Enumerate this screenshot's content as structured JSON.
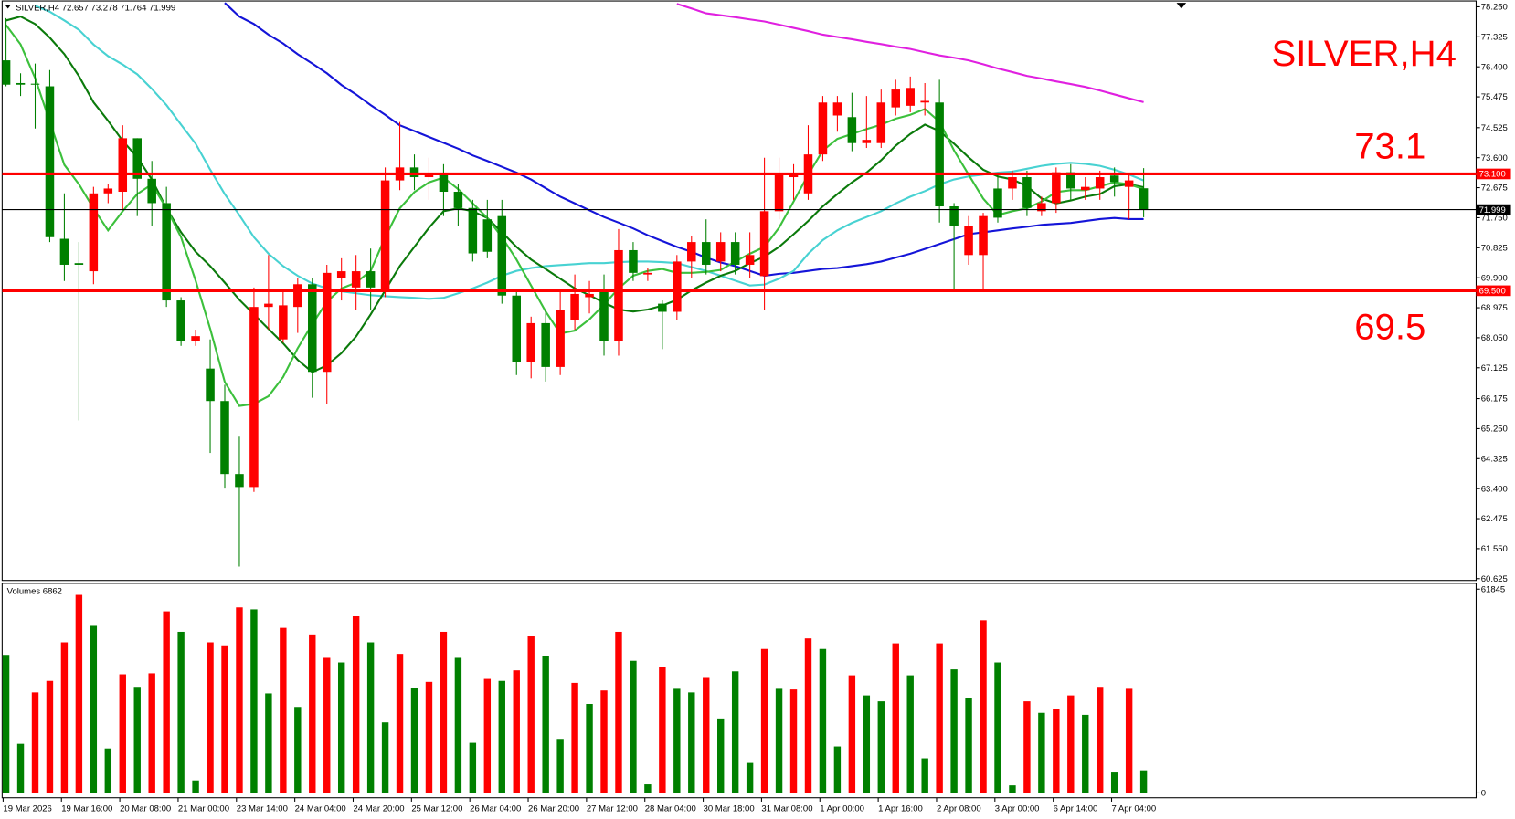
{
  "chart_data": {
    "type": "candlestick",
    "symbol": "SILVER,H4",
    "categories": [
      "19 Mar 2026",
      null,
      null,
      null,
      "19 Mar 16:00",
      null,
      null,
      null,
      "20 Mar 08:00",
      null,
      null,
      null,
      "21 Mar 00:00",
      null,
      null,
      null,
      "23 Mar 14:00",
      null,
      null,
      null,
      "24 Mar 04:00",
      null,
      null,
      null,
      "24 Mar 20:00",
      null,
      null,
      null,
      "25 Mar 12:00",
      null,
      null,
      null,
      "26 Mar 04:00",
      null,
      null,
      null,
      "26 Mar 20:00",
      null,
      null,
      null,
      "27 Mar 12:00",
      null,
      null,
      null,
      "28 Mar 04:00",
      null,
      null,
      null,
      "30 Mar 18:00",
      null,
      null,
      null,
      "31 Mar 08:00",
      null,
      null,
      null,
      "1 Apr 00:00",
      null,
      null,
      null,
      "1 Apr 16:00",
      null,
      null,
      null,
      "2 Apr 08:00",
      null,
      null,
      null,
      "3 Apr 00:00",
      null,
      null,
      null,
      "6 Apr 14:00",
      null,
      null,
      null,
      "7 Apr 04:00",
      null,
      null
    ],
    "open": [
      76.6,
      75.9,
      75.88,
      75.8,
      71.1,
      70.35,
      70.1,
      72.5,
      72.55,
      74.2,
      72.95,
      72.2,
      69.2,
      67.95,
      67.1,
      66.1,
      63.85,
      63.45,
      69.0,
      68.0,
      69.0,
      69.7,
      67.0,
      69.9,
      69.6,
      70.1,
      69.5,
      72.9,
      73.3,
      73.0,
      73.1,
      72.55,
      72.05,
      71.7,
      71.8,
      69.35,
      67.3,
      68.5,
      67.15,
      68.6,
      69.3,
      69.5,
      67.95,
      70.75,
      70.0,
      69.1,
      68.85,
      70.4,
      71.0,
      70.4,
      71.0,
      70.3,
      69.95,
      71.95,
      73.0,
      72.5,
      73.7,
      74.9,
      74.85,
      74.05,
      74.05,
      75.15,
      75.2,
      75.3,
      75.3,
      72.1,
      70.6,
      70.6,
      72.65,
      72.65,
      73.0,
      71.95,
      72.2,
      73.15,
      72.6,
      72.65,
      73.05,
      72.7,
      72.657
    ],
    "high": [
      77.9,
      76.2,
      76.5,
      76.3,
      72.5,
      71.0,
      72.7,
      72.8,
      74.6,
      74.2,
      73.5,
      72.7,
      69.3,
      68.3,
      68.0,
      66.6,
      65.0,
      69.6,
      70.6,
      69.5,
      69.9,
      69.9,
      70.3,
      70.5,
      70.6,
      70.8,
      73.3,
      74.7,
      73.7,
      73.6,
      73.4,
      72.8,
      72.3,
      72.3,
      72.3,
      69.5,
      68.7,
      68.9,
      69.5,
      70.0,
      69.8,
      70.0,
      71.4,
      71.0,
      70.2,
      69.2,
      70.6,
      71.2,
      71.7,
      71.3,
      71.3,
      71.3,
      73.6,
      73.6,
      73.4,
      74.6,
      75.5,
      75.5,
      75.6,
      75.5,
      75.7,
      76.0,
      76.1,
      75.9,
      76.0,
      72.2,
      71.8,
      71.9,
      73.1,
      73.2,
      73.2,
      72.4,
      73.3,
      73.4,
      73.0,
      73.2,
      73.3,
      73.1,
      73.278
    ],
    "low": [
      75.8,
      75.5,
      74.5,
      71.0,
      69.8,
      65.5,
      69.7,
      72.2,
      72.0,
      71.8,
      71.5,
      69.0,
      67.8,
      67.8,
      64.5,
      63.4,
      61.0,
      63.3,
      68.3,
      67.9,
      68.2,
      66.2,
      66.0,
      69.2,
      68.9,
      68.9,
      69.3,
      72.6,
      72.6,
      72.3,
      71.8,
      71.5,
      70.4,
      70.5,
      69.1,
      66.9,
      66.8,
      66.7,
      66.9,
      68.3,
      68.8,
      67.5,
      67.5,
      69.8,
      69.8,
      67.7,
      68.6,
      69.9,
      70.0,
      70.1,
      70.0,
      69.9,
      68.9,
      71.7,
      72.3,
      72.3,
      73.5,
      74.4,
      73.8,
      73.9,
      73.9,
      74.9,
      75.0,
      74.9,
      71.6,
      69.5,
      70.3,
      69.5,
      71.6,
      72.3,
      71.8,
      71.8,
      71.9,
      72.3,
      72.3,
      72.3,
      72.4,
      71.7,
      71.764
    ],
    "close": [
      75.85,
      75.85,
      75.85,
      71.15,
      70.3,
      70.3,
      72.5,
      72.65,
      74.2,
      72.95,
      72.2,
      69.2,
      67.95,
      68.1,
      66.1,
      63.85,
      63.45,
      69.0,
      69.1,
      69.05,
      69.7,
      67.0,
      70.05,
      70.1,
      70.1,
      69.6,
      72.9,
      73.3,
      73.0,
      73.1,
      72.55,
      72.05,
      70.65,
      70.7,
      69.35,
      67.3,
      68.5,
      67.15,
      68.9,
      69.4,
      69.4,
      67.95,
      70.75,
      70.05,
      70.05,
      68.85,
      70.4,
      71.0,
      70.3,
      71.0,
      70.3,
      70.6,
      71.95,
      73.1,
      73.1,
      73.7,
      75.3,
      75.3,
      74.05,
      74.15,
      75.3,
      75.7,
      75.75,
      75.35,
      72.1,
      71.5,
      71.5,
      71.8,
      71.75,
      73.0,
      72.05,
      72.2,
      73.15,
      72.65,
      72.7,
      73.0,
      72.85,
      72.9,
      71.999
    ],
    "up_color": "#ff0000",
    "down_color": "#008000",
    "ylim": [
      60.57,
      78.43
    ],
    "yticks": [
      {
        "value": 78.25,
        "label": "78.250"
      },
      {
        "value": 77.325,
        "label": "77.325"
      },
      {
        "value": 76.4,
        "label": "76.400"
      },
      {
        "value": 75.475,
        "label": "75.475"
      },
      {
        "value": 74.525,
        "label": "74.525"
      },
      {
        "value": 73.6,
        "label": "73.600"
      },
      {
        "value": 72.675,
        "label": "72.675"
      },
      {
        "value": 71.75,
        "label": "71.750"
      },
      {
        "value": 70.825,
        "label": "70.825"
      },
      {
        "value": 69.9,
        "label": "69.900"
      },
      {
        "value": 68.975,
        "label": "68.975"
      },
      {
        "value": 68.05,
        "label": "68.050"
      },
      {
        "value": 67.125,
        "label": "67.125"
      },
      {
        "value": 66.175,
        "label": "66.175"
      },
      {
        "value": 65.25,
        "label": "65.250"
      },
      {
        "value": 64.325,
        "label": "64.325"
      },
      {
        "value": 63.4,
        "label": "63.400"
      },
      {
        "value": 62.475,
        "label": "62.475"
      },
      {
        "value": 61.55,
        "label": "61.550"
      },
      {
        "value": 60.625,
        "label": "60.625"
      }
    ],
    "levels": [
      {
        "value": 73.1,
        "label": "73.100"
      },
      {
        "value": 69.5,
        "label": "69.500"
      }
    ],
    "level_color": "#ff0000",
    "last_price": 71.999,
    "moving_averages": [
      {
        "color": "#e020e0",
        "values": [
          null,
          null,
          null,
          null,
          null,
          null,
          null,
          null,
          null,
          null,
          null,
          null,
          null,
          null,
          null,
          null,
          null,
          null,
          null,
          null,
          null,
          null,
          null,
          null,
          null,
          null,
          null,
          null,
          null,
          null,
          null,
          null,
          null,
          null,
          null,
          null,
          null,
          null,
          null,
          null,
          null,
          null,
          null,
          null,
          null,
          null,
          78.34,
          78.2,
          78.05,
          77.99,
          77.93,
          77.86,
          77.8,
          77.7,
          77.6,
          77.5,
          77.39,
          77.32,
          77.25,
          77.17,
          77.1,
          77.02,
          76.95,
          76.85,
          76.75,
          76.68,
          76.6,
          76.48,
          76.35,
          76.24,
          76.12,
          76.04,
          75.95,
          75.87,
          75.78,
          75.67,
          75.55,
          75.43,
          75.31
        ]
      },
      {
        "color": "#1414d8",
        "values": [
          null,
          null,
          null,
          null,
          null,
          null,
          null,
          null,
          null,
          null,
          null,
          null,
          null,
          null,
          null,
          78.37,
          77.95,
          77.72,
          77.39,
          77.12,
          76.79,
          76.5,
          76.2,
          75.84,
          75.55,
          75.22,
          74.92,
          74.6,
          74.42,
          74.24,
          74.06,
          73.88,
          73.67,
          73.5,
          73.32,
          73.14,
          72.93,
          72.66,
          72.4,
          72.19,
          71.98,
          71.77,
          71.6,
          71.42,
          71.21,
          71.03,
          70.85,
          70.7,
          70.52,
          70.37,
          70.26,
          70.11,
          69.96,
          70.02,
          70.05,
          70.11,
          70.17,
          70.2,
          70.26,
          70.32,
          70.4,
          70.52,
          70.64,
          70.79,
          70.94,
          71.09,
          71.24,
          71.3,
          71.36,
          71.42,
          71.47,
          71.53,
          71.56,
          71.59,
          71.65,
          71.71,
          71.74,
          71.71,
          71.71
        ]
      },
      {
        "color": "#48d2d2",
        "values": [
          null,
          null,
          78.28,
          78.1,
          77.83,
          77.54,
          77.09,
          76.73,
          76.47,
          76.17,
          75.72,
          75.22,
          74.62,
          74.03,
          73.23,
          72.48,
          71.83,
          71.15,
          70.64,
          70.26,
          69.96,
          69.72,
          69.57,
          69.48,
          69.42,
          69.36,
          69.33,
          69.3,
          69.28,
          69.25,
          69.28,
          69.42,
          69.57,
          69.75,
          69.96,
          70.11,
          70.2,
          70.26,
          70.29,
          70.32,
          70.35,
          70.35,
          70.38,
          70.4,
          70.4,
          70.38,
          70.35,
          70.23,
          70.11,
          69.96,
          69.81,
          69.66,
          69.69,
          69.87,
          70.11,
          70.64,
          71.06,
          71.36,
          71.59,
          71.77,
          71.95,
          72.19,
          72.4,
          72.57,
          72.78,
          72.93,
          73.02,
          73.08,
          73.14,
          73.17,
          73.26,
          73.35,
          73.41,
          73.44,
          73.41,
          73.35,
          73.23,
          73.08,
          72.9
        ]
      },
      {
        "color": "#0b7a0b",
        "values": [
          77.83,
          77.95,
          77.72,
          77.3,
          76.79,
          76.11,
          75.31,
          74.74,
          74.12,
          73.61,
          72.93,
          72.04,
          71.3,
          70.7,
          70.26,
          69.75,
          69.22,
          68.77,
          68.32,
          67.88,
          67.37,
          66.99,
          67.2,
          67.58,
          68.09,
          68.77,
          69.51,
          70.26,
          70.85,
          71.44,
          71.95,
          72.04,
          71.95,
          71.74,
          71.3,
          70.85,
          70.46,
          70.17,
          69.87,
          69.57,
          69.36,
          69.13,
          68.92,
          68.86,
          68.92,
          69.04,
          69.22,
          69.51,
          69.75,
          69.96,
          70.11,
          70.35,
          70.55,
          70.85,
          71.24,
          71.65,
          72.1,
          72.48,
          72.84,
          73.14,
          73.52,
          73.97,
          74.33,
          74.62,
          74.42,
          74.03,
          73.61,
          73.23,
          73.02,
          72.93,
          72.72,
          72.34,
          72.19,
          72.28,
          72.4,
          72.48,
          72.72,
          72.78,
          72.69
        ]
      },
      {
        "color": "#3cc03c",
        "values": [
          77.69,
          77.09,
          76.05,
          74.71,
          73.38,
          72.78,
          72.04,
          71.36,
          71.95,
          72.48,
          72.78,
          72.04,
          71.15,
          69.81,
          68.32,
          66.69,
          65.95,
          66.01,
          66.25,
          66.84,
          67.73,
          68.47,
          69.16,
          69.57,
          69.75,
          70.11,
          71.15,
          72.04,
          72.54,
          72.84,
          72.99,
          72.63,
          72.19,
          71.74,
          71.15,
          70.46,
          69.66,
          68.86,
          68.18,
          68.27,
          68.62,
          69.07,
          69.57,
          69.96,
          70.11,
          70.17,
          70.05,
          70.05,
          70.08,
          70.14,
          70.4,
          70.64,
          70.85,
          71.44,
          72.25,
          73.08,
          73.82,
          74.18,
          74.33,
          74.48,
          74.62,
          74.8,
          74.92,
          75.1,
          74.71,
          73.82,
          73.08,
          72.34,
          71.83,
          71.95,
          72.04,
          72.25,
          72.54,
          72.6,
          72.6,
          72.72,
          72.84,
          72.78,
          72.63
        ]
      }
    ],
    "volume": {
      "title": "Volumes",
      "values": [
        41900,
        14900,
        30500,
        34000,
        45700,
        60100,
        50700,
        13500,
        36000,
        32200,
        36300,
        55100,
        48900,
        3800,
        45700,
        44800,
        56300,
        55700,
        30200,
        50100,
        26100,
        48100,
        41000,
        39600,
        53600,
        45700,
        21400,
        42200,
        31900,
        33700,
        48900,
        41000,
        15200,
        34600,
        34000,
        37200,
        47500,
        41600,
        16400,
        33400,
        27000,
        31100,
        48900,
        40100,
        2600,
        38100,
        31600,
        30500,
        34900,
        22600,
        36900,
        9100,
        43700,
        31600,
        31400,
        46900,
        43700,
        14100,
        35700,
        29600,
        27800,
        45400,
        35700,
        10500,
        45400,
        37500,
        28700,
        52400,
        39600,
        2300,
        27800,
        24300,
        25500,
        29600,
        23700,
        32200,
        6200,
        31600,
        6862
      ],
      "colors": [
        "#008000",
        "#008000",
        "#ff0000",
        "#ff0000",
        "#ff0000",
        "#ff0000",
        "#008000",
        "#008000",
        "#ff0000",
        "#008000",
        "#ff0000",
        "#ff0000",
        "#008000",
        "#008000",
        "#ff0000",
        "#ff0000",
        "#ff0000",
        "#008000",
        "#008000",
        "#ff0000",
        "#008000",
        "#ff0000",
        "#ff0000",
        "#008000",
        "#ff0000",
        "#008000",
        "#008000",
        "#ff0000",
        "#008000",
        "#ff0000",
        "#ff0000",
        "#008000",
        "#008000",
        "#ff0000",
        "#008000",
        "#ff0000",
        "#ff0000",
        "#008000",
        "#008000",
        "#ff0000",
        "#008000",
        "#ff0000",
        "#ff0000",
        "#008000",
        "#008000",
        "#ff0000",
        "#008000",
        "#008000",
        "#ff0000",
        "#008000",
        "#008000",
        "#008000",
        "#ff0000",
        "#008000",
        "#ff0000",
        "#ff0000",
        "#008000",
        "#008000",
        "#ff0000",
        "#008000",
        "#008000",
        "#ff0000",
        "#008000",
        "#008000",
        "#ff0000",
        "#008000",
        "#008000",
        "#ff0000",
        "#008000",
        "#008000",
        "#ff0000",
        "#008000",
        "#ff0000",
        "#ff0000",
        "#008000",
        "#ff0000",
        "#008000",
        "#ff0000",
        "#008000"
      ],
      "ylim": [
        0,
        61845
      ],
      "yticks": [
        0,
        61845
      ]
    }
  }
}
